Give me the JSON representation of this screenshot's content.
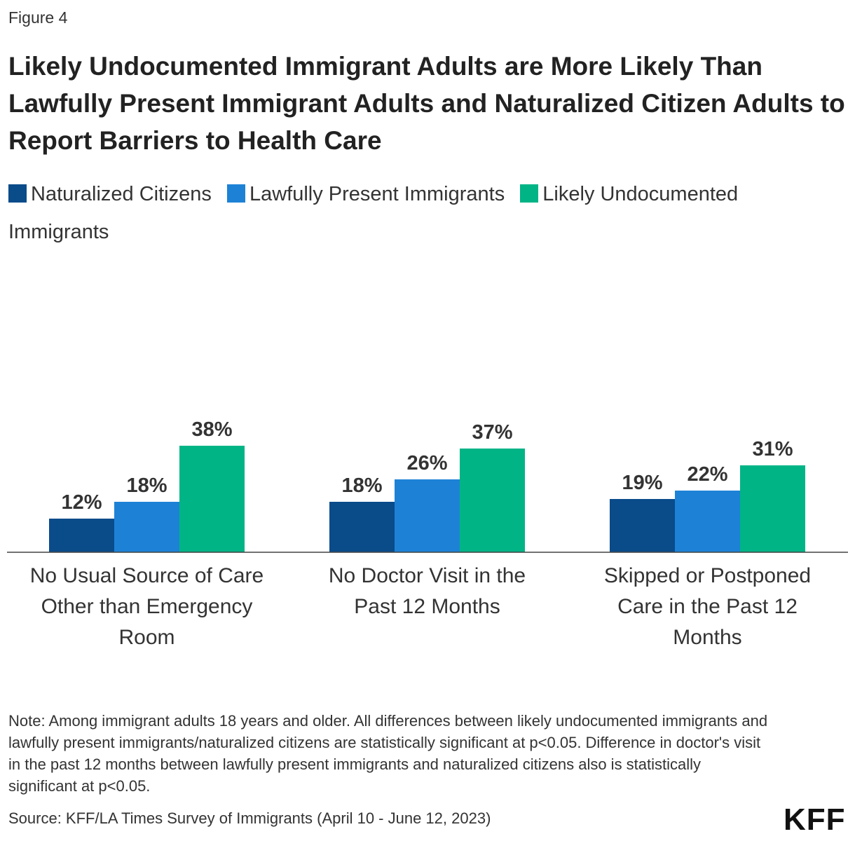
{
  "figure_label": "Figure 4",
  "legend": [
    {
      "name": "Naturalized Citizens",
      "color": "#0a4b8a"
    },
    {
      "name": "Lawfully Present Immigrants",
      "color": "#1d82d6"
    },
    {
      "name": "Likely Undocumented Immigrants",
      "color": "#00b486"
    }
  ],
  "chart_data": {
    "type": "bar",
    "title": "Likely Undocumented Immigrant Adults are More Likely Than Lawfully Present Immigrant Adults and Naturalized Citizen Adults to Report Barriers to Health Care",
    "categories": [
      [
        "No Usual Source of Care",
        "Other than Emergency",
        "Room"
      ],
      [
        "No Doctor Visit in the",
        "Past 12 Months"
      ],
      [
        "Skipped or Postponed",
        "Care in the Past 12",
        "Months"
      ]
    ],
    "series": [
      {
        "name": "Naturalized Citizens",
        "values": [
          12,
          18,
          19
        ],
        "labels": [
          "12%",
          "18%",
          "19%"
        ],
        "color": "#0a4b8a"
      },
      {
        "name": "Lawfully Present Immigrants",
        "values": [
          18,
          26,
          22
        ],
        "labels": [
          "18%",
          "26%",
          "22%"
        ],
        "color": "#1d82d6"
      },
      {
        "name": "Likely Undocumented Immigrants",
        "values": [
          38,
          37,
          31
        ],
        "labels": [
          "38%",
          "37%",
          "31%"
        ],
        "color": "#00b486"
      }
    ],
    "ylim": [
      0,
      50
    ],
    "grid": false,
    "legend_position": "top-left"
  },
  "note": "Note: Among immigrant adults 18 years and older. All differences between likely undocumented immigrants and lawfully present immigrants/naturalized citizens are statistically significant at p<0.05. Difference in doctor's visit in the past 12 months between lawfully present immigrants and naturalized citizens also is statistically significant at p<0.05.",
  "source": "Source: KFF/LA Times Survey of Immigrants (April 10 - June 12, 2023)",
  "logo_text": "KFF"
}
